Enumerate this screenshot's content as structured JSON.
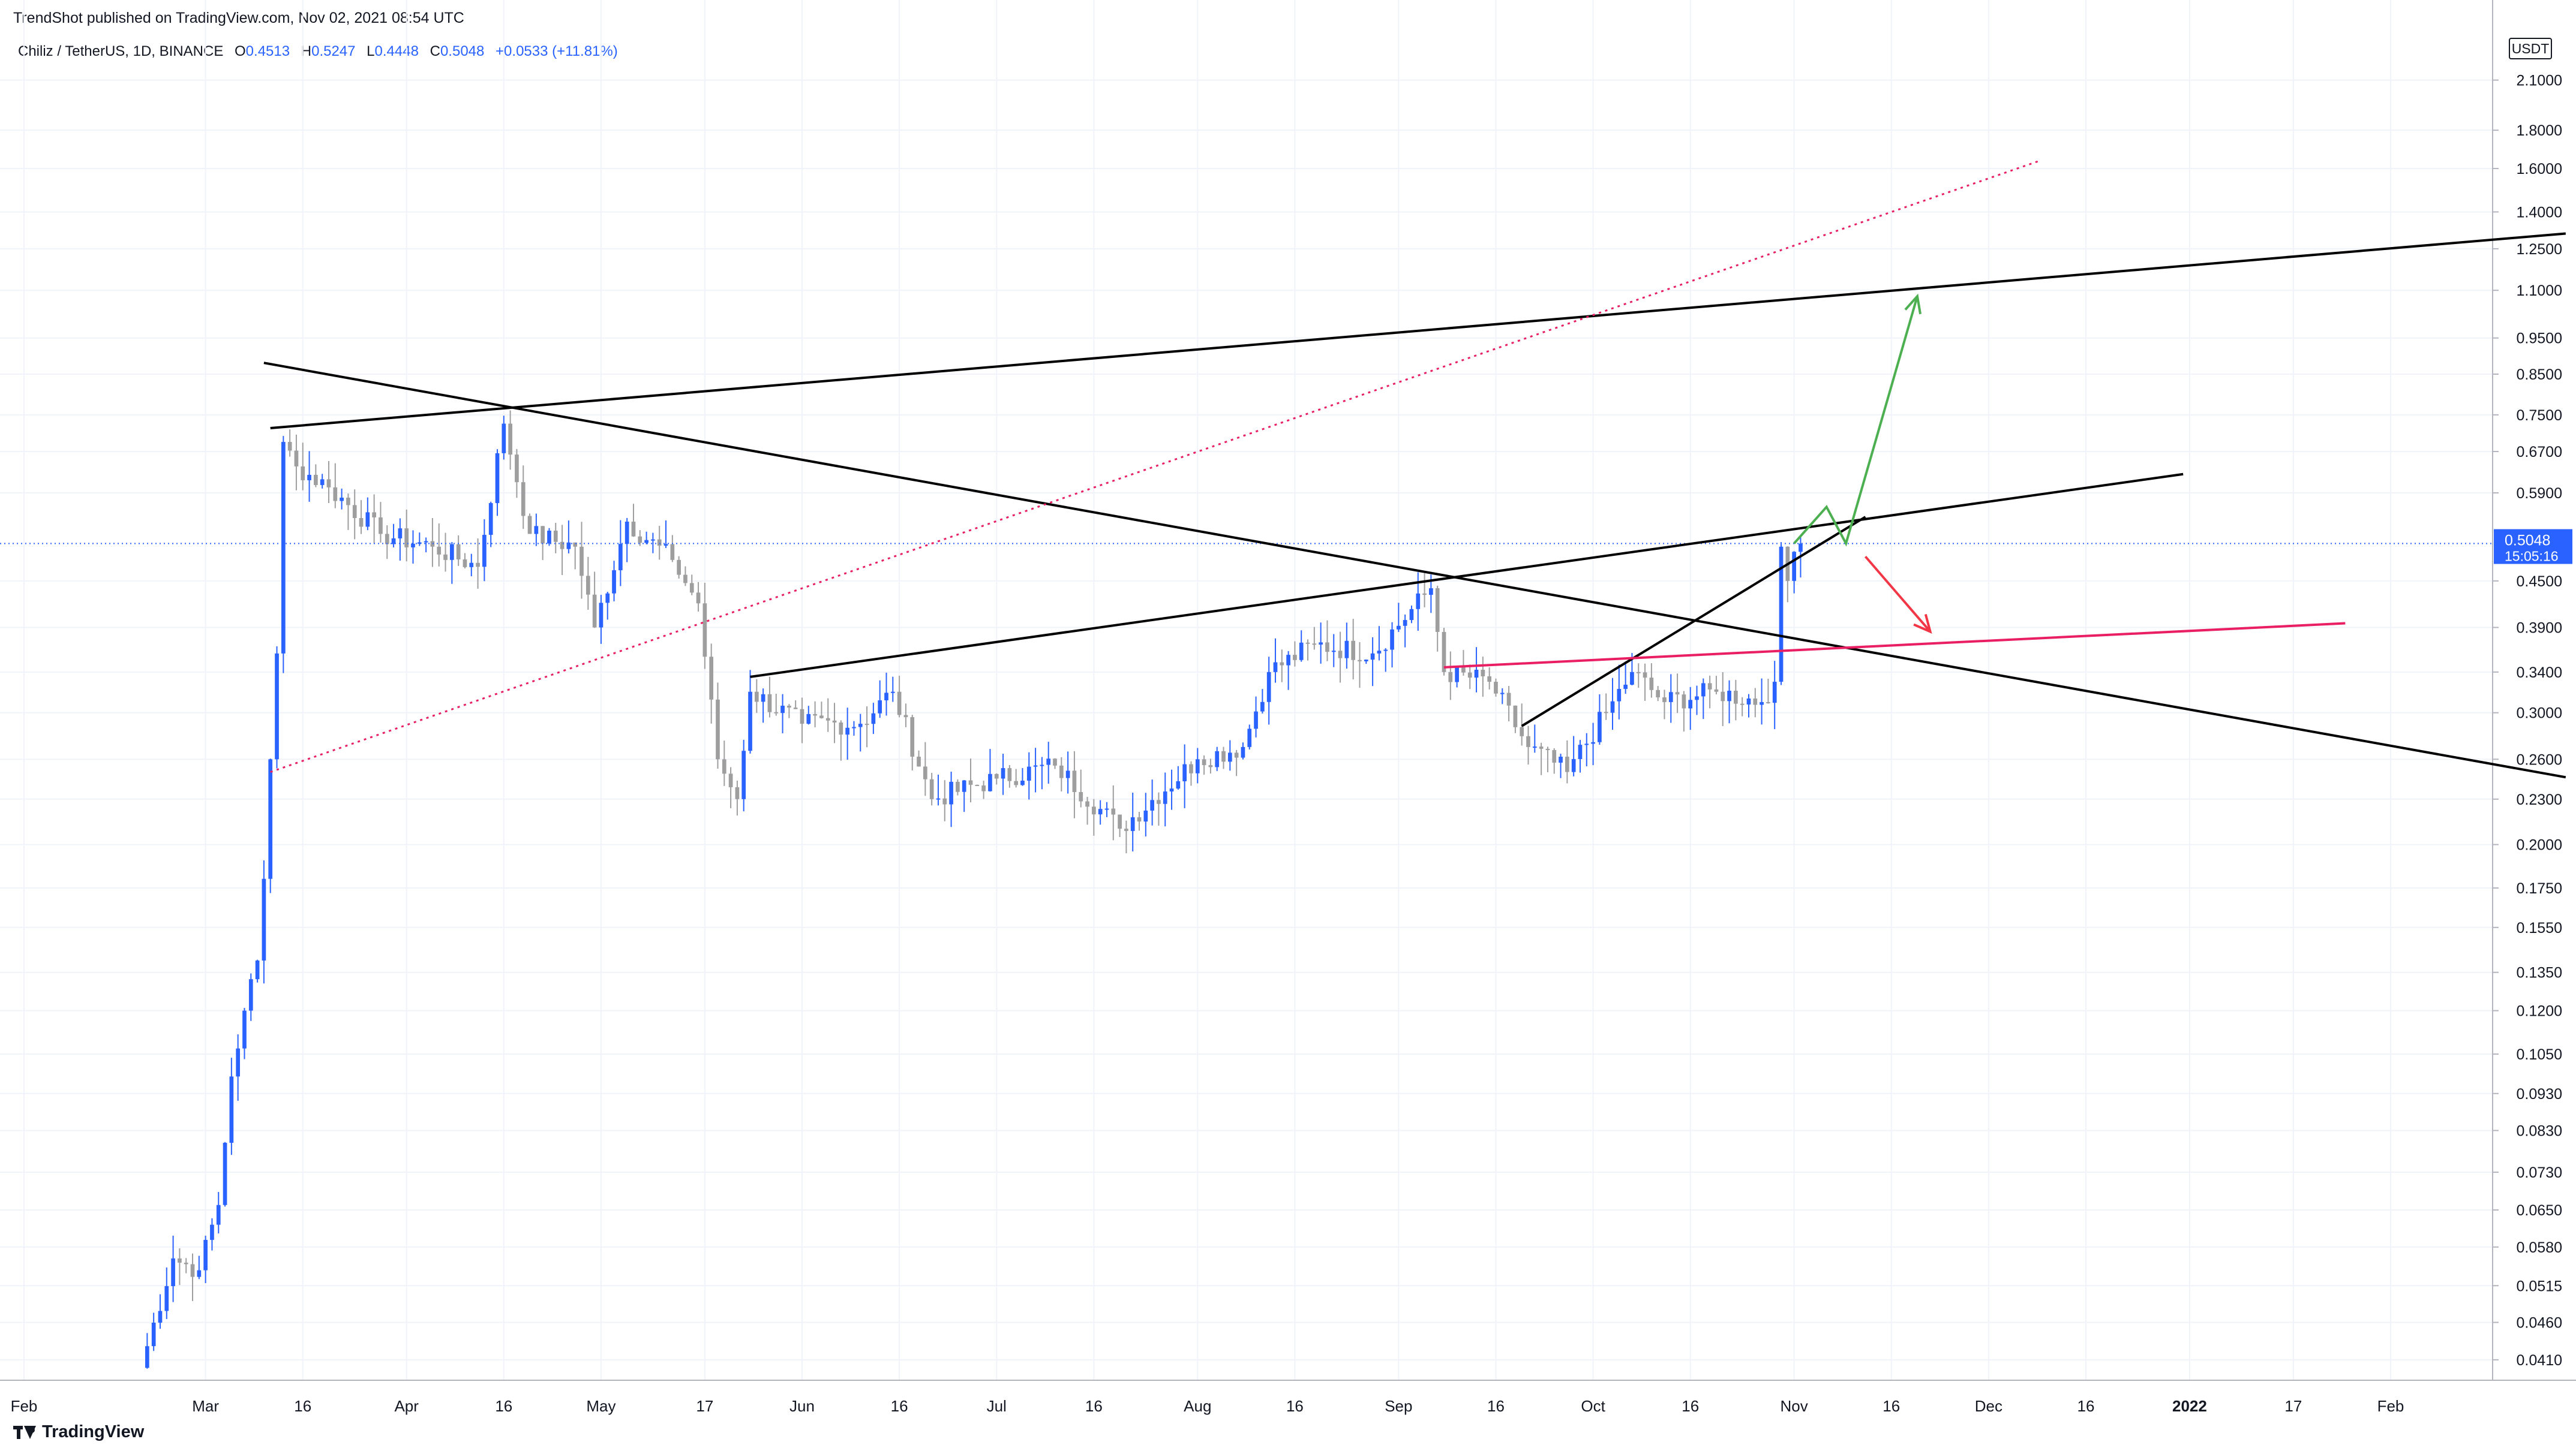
{
  "header": {
    "published_text": "TrendShot published on TradingView.com, Nov 02, 2021 08:54 UTC"
  },
  "legend": {
    "symbol": "Chiliz / TetherUS, 1D, BINANCE",
    "open_label": "O",
    "open": "0.4513",
    "high_label": "H",
    "high": "0.5247",
    "low_label": "L",
    "low": "0.4448",
    "close_label": "C",
    "close": "0.5048",
    "change": "+0.0533 (+11.81%)"
  },
  "price_scale": {
    "currency": "USDT",
    "last_price": "0.5048",
    "countdown": "15:05:16"
  },
  "footer": {
    "brand": "TradingView"
  },
  "colors": {
    "up": "#2962ff",
    "down": "#9e9e9e",
    "trendline": "#000000",
    "dotted_trendline": "#e91e63",
    "pink_line": "#e91e63",
    "arrow_up": "#4caf50",
    "arrow_down": "#f23645",
    "last_price_line": "#2962ff"
  },
  "chart_data": {
    "type": "candlestick",
    "title": "Chiliz / TetherUS, 1D, BINANCE",
    "scale": "log",
    "ylim": [
      0.0385,
      2.45
    ],
    "y_ticks": [
      "2.1000",
      "1.8000",
      "1.6000",
      "1.4000",
      "1.2500",
      "1.1000",
      "0.9500",
      "0.8500",
      "0.7500",
      "0.6700",
      "0.5900",
      "0.4500",
      "0.3900",
      "0.3400",
      "0.3000",
      "0.2600",
      "0.2300",
      "0.2000",
      "0.1750",
      "0.1550",
      "0.1350",
      "0.1200",
      "0.1050",
      "0.0930",
      "0.0830",
      "0.0730",
      "0.0650",
      "0.0580",
      "0.0515",
      "0.0460",
      "0.0410"
    ],
    "x_ticks": [
      {
        "label": "Feb",
        "date": "2021-02-01"
      },
      {
        "label": "Mar",
        "date": "2021-03-01"
      },
      {
        "label": "16",
        "date": "2021-03-16"
      },
      {
        "label": "Apr",
        "date": "2021-04-01"
      },
      {
        "label": "16",
        "date": "2021-04-16"
      },
      {
        "label": "May",
        "date": "2021-05-01"
      },
      {
        "label": "17",
        "date": "2021-05-17"
      },
      {
        "label": "Jun",
        "date": "2021-06-01"
      },
      {
        "label": "16",
        "date": "2021-06-16"
      },
      {
        "label": "Jul",
        "date": "2021-07-01"
      },
      {
        "label": "16",
        "date": "2021-07-16"
      },
      {
        "label": "Aug",
        "date": "2021-08-01"
      },
      {
        "label": "16",
        "date": "2021-08-16"
      },
      {
        "label": "Sep",
        "date": "2021-09-01"
      },
      {
        "label": "16",
        "date": "2021-09-16"
      },
      {
        "label": "Oct",
        "date": "2021-10-01"
      },
      {
        "label": "16",
        "date": "2021-10-16"
      },
      {
        "label": "Nov",
        "date": "2021-11-01"
      },
      {
        "label": "16",
        "date": "2021-11-16"
      },
      {
        "label": "Dec",
        "date": "2021-12-01"
      },
      {
        "label": "16",
        "date": "2021-12-16"
      },
      {
        "label": "2022",
        "date": "2022-01-01",
        "bold": true
      },
      {
        "label": "17",
        "date": "2022-01-17"
      },
      {
        "label": "Feb",
        "date": "2022-02-01"
      }
    ],
    "candle_anchors": [
      {
        "date": "2021-02-19",
        "price": 0.04
      },
      {
        "date": "2021-02-24",
        "price": 0.056
      },
      {
        "date": "2021-02-28",
        "price": 0.054
      },
      {
        "date": "2021-03-03",
        "price": 0.066
      },
      {
        "date": "2021-03-05",
        "price": 0.098
      },
      {
        "date": "2021-03-07",
        "price": 0.12
      },
      {
        "date": "2021-03-09",
        "price": 0.14
      },
      {
        "date": "2021-03-10",
        "price": 0.18
      },
      {
        "date": "2021-03-11",
        "price": 0.26
      },
      {
        "date": "2021-03-12",
        "price": 0.36
      },
      {
        "date": "2021-03-13",
        "price": 0.69
      },
      {
        "date": "2021-03-15",
        "price": 0.64
      },
      {
        "date": "2021-03-20",
        "price": 0.6
      },
      {
        "date": "2021-03-28",
        "price": 0.52
      },
      {
        "date": "2021-04-05",
        "price": 0.5
      },
      {
        "date": "2021-04-12",
        "price": 0.47
      },
      {
        "date": "2021-04-16",
        "price": 0.73
      },
      {
        "date": "2021-04-20",
        "price": 0.52
      },
      {
        "date": "2021-04-27",
        "price": 0.5
      },
      {
        "date": "2021-04-30",
        "price": 0.39
      },
      {
        "date": "2021-05-05",
        "price": 0.54
      },
      {
        "date": "2021-05-12",
        "price": 0.48
      },
      {
        "date": "2021-05-16",
        "price": 0.42
      },
      {
        "date": "2021-05-19",
        "price": 0.26
      },
      {
        "date": "2021-05-22",
        "price": 0.23
      },
      {
        "date": "2021-05-24",
        "price": 0.32
      },
      {
        "date": "2021-06-01",
        "price": 0.29
      },
      {
        "date": "2021-06-10",
        "price": 0.29
      },
      {
        "date": "2021-06-15",
        "price": 0.32
      },
      {
        "date": "2021-06-21",
        "price": 0.23
      },
      {
        "date": "2021-07-01",
        "price": 0.245
      },
      {
        "date": "2021-07-10",
        "price": 0.255
      },
      {
        "date": "2021-07-20",
        "price": 0.21
      },
      {
        "date": "2021-08-01",
        "price": 0.26
      },
      {
        "date": "2021-08-08",
        "price": 0.27
      },
      {
        "date": "2021-08-12",
        "price": 0.34
      },
      {
        "date": "2021-08-19",
        "price": 0.37
      },
      {
        "date": "2021-08-28",
        "price": 0.36
      },
      {
        "date": "2021-09-06",
        "price": 0.44
      },
      {
        "date": "2021-09-08",
        "price": 0.34
      },
      {
        "date": "2021-09-15",
        "price": 0.33
      },
      {
        "date": "2021-09-21",
        "price": 0.27
      },
      {
        "date": "2021-09-27",
        "price": 0.25
      },
      {
        "date": "2021-10-03",
        "price": 0.3
      },
      {
        "date": "2021-10-07",
        "price": 0.34
      },
      {
        "date": "2021-10-12",
        "price": 0.31
      },
      {
        "date": "2021-10-20",
        "price": 0.32
      },
      {
        "date": "2021-10-27",
        "price": 0.31
      },
      {
        "date": "2021-10-29",
        "price": 0.33
      },
      {
        "date": "2021-10-30",
        "price": 0.5
      },
      {
        "date": "2021-10-31",
        "price": 0.45
      },
      {
        "date": "2021-11-02",
        "price": 0.5048
      }
    ],
    "drawings": [
      {
        "name": "descending-trendline",
        "style": "solid",
        "color": "#000000",
        "from": {
          "date": "2021-03-10",
          "price": 0.88
        },
        "to": {
          "date": "2022-02-28",
          "price": 0.246
        }
      },
      {
        "name": "upper-ascending-trendline",
        "style": "solid",
        "color": "#000000",
        "from": {
          "date": "2021-03-11",
          "price": 0.72
        },
        "to": {
          "date": "2022-02-28",
          "price": 1.31
        }
      },
      {
        "name": "middle-ascending-trendline",
        "style": "solid",
        "color": "#000000",
        "from": {
          "date": "2021-05-24",
          "price": 0.335
        },
        "to": {
          "date": "2021-12-31",
          "price": 0.625
        }
      },
      {
        "name": "rising-support-trendline",
        "style": "solid",
        "color": "#000000",
        "from": {
          "date": "2021-09-20",
          "price": 0.288
        },
        "to": {
          "date": "2021-11-12",
          "price": 0.548
        }
      },
      {
        "name": "dotted-trendline",
        "style": "dotted",
        "color": "#e91e63",
        "from": {
          "date": "2021-03-11",
          "price": 0.25
        },
        "to": {
          "date": "2021-12-09",
          "price": 1.64
        }
      },
      {
        "name": "pink-support-line",
        "style": "solid",
        "color": "#e91e63",
        "from": {
          "date": "2021-09-08",
          "price": 0.345
        },
        "to": {
          "date": "2022-01-25",
          "price": 0.395
        }
      }
    ],
    "arrows": [
      {
        "name": "bullish-path-arrow",
        "color": "#4caf50",
        "points": [
          {
            "date": "2021-11-01",
            "price": 0.505
          },
          {
            "date": "2021-11-06",
            "price": 0.565
          },
          {
            "date": "2021-11-09",
            "price": 0.505
          },
          {
            "date": "2021-11-20",
            "price": 1.08
          }
        ]
      },
      {
        "name": "bearish-path-arrow",
        "color": "#f23645",
        "points": [
          {
            "date": "2021-11-12",
            "price": 0.485
          },
          {
            "date": "2021-11-22",
            "price": 0.385
          }
        ]
      }
    ]
  }
}
